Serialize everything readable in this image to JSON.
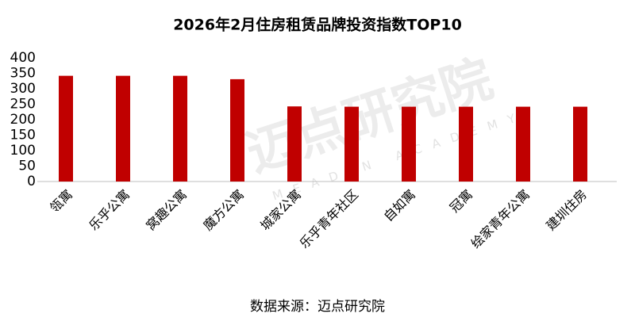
{
  "chart_data": {
    "type": "bar",
    "title": "2026年2月住房租赁品牌投资指数TOP10",
    "categories": [
      "瓴寓",
      "乐乎公寓",
      "窝趣公寓",
      "魔方公寓",
      "城家公寓",
      "乐乎青年社区",
      "自如寓",
      "冠寓",
      "绘家青年公寓",
      "建圳住房"
    ],
    "values": [
      342,
      342,
      342,
      331,
      243,
      242,
      242,
      242,
      242,
      242
    ],
    "color": "#c00000",
    "ylim": [
      0,
      400
    ],
    "yticks": [
      0,
      50,
      100,
      150,
      200,
      250,
      300,
      350,
      400
    ],
    "grid": false,
    "source": "数据来源：迈点研究院",
    "watermark": {
      "text": "迈点研究院",
      "subtext": "MEADIN ACADEMY"
    }
  }
}
